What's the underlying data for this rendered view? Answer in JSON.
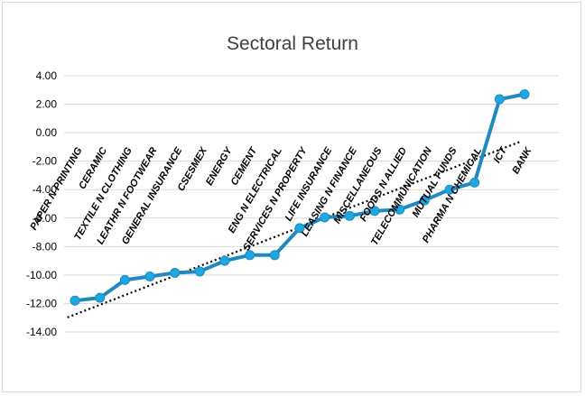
{
  "chart_data": {
    "type": "line",
    "title": "Sectoral Return",
    "xlabel": "",
    "ylabel": "",
    "ylim": [
      -14,
      4
    ],
    "ytick_step": 2,
    "ytick_labels": [
      "4.00",
      "2.00",
      "0.00",
      "-2.00",
      "-4.00",
      "-6.00",
      "-8.00",
      "-10.00",
      "-12.00",
      "-14.00"
    ],
    "categories": [
      "PAPER N PRINTING",
      "CERAMIC",
      "TEXTILE N CLOTHING",
      "LEATHR N FOOTWEAR",
      "GENERAL INSURANCE",
      "CSESMEX",
      "ENERGY",
      "CEMENT",
      "ENG N ELECTRICAL",
      "SERVICES N PROPERTY",
      "LIFE INSURANCE",
      "LEASING N FINANCE",
      "MISCELLANEOUS",
      "FOODS N ALLIED",
      "TELECOMMUNICATION",
      "MUTUAL FUNDS",
      "PHARMA N CHEMICAL",
      "ICT",
      "BANK"
    ],
    "series": [
      {
        "values": [
          -11.8,
          -11.6,
          -10.35,
          -10.1,
          -9.85,
          -9.75,
          -9.0,
          -8.6,
          -8.6,
          -6.7,
          -5.95,
          -5.85,
          -5.5,
          -5.4,
          -4.75,
          -4.0,
          -3.5,
          2.35,
          2.7
        ],
        "color": "#1e8ac0",
        "marker_color": "#1ea7e1"
      }
    ],
    "trendline": {
      "type": "linear",
      "style": "dotted",
      "color": "#000000"
    },
    "grid": {
      "horizontal": true,
      "vertical": false,
      "color": "#d9d9d9"
    },
    "legend": "none"
  }
}
